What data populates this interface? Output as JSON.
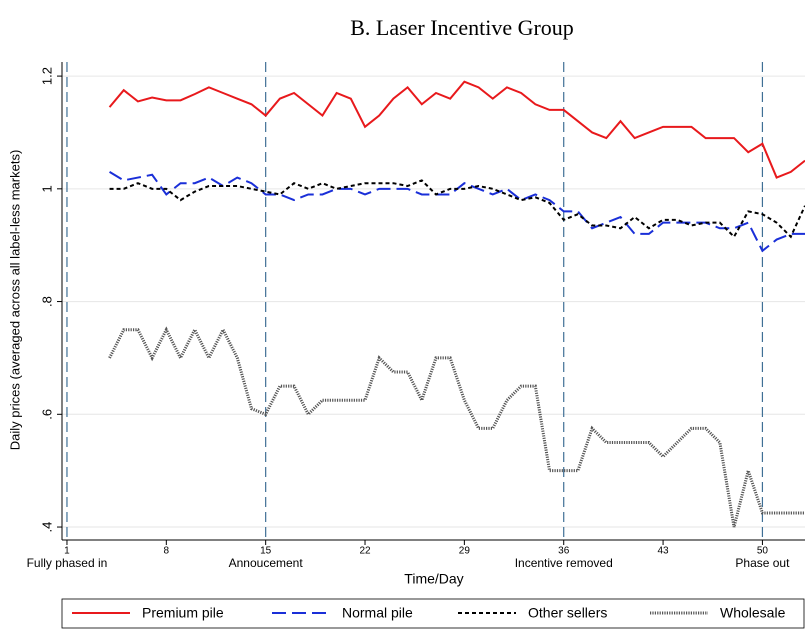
{
  "chart_data": {
    "type": "line",
    "title": "B. Laser Incentive Group",
    "x_label": "Time/Day",
    "y_label": "Daily prices (averaged across all label-less markets)",
    "x": [
      4,
      5,
      6,
      7,
      8,
      9,
      10,
      11,
      12,
      13,
      14,
      15,
      16,
      17,
      18,
      19,
      20,
      21,
      22,
      23,
      24,
      25,
      26,
      27,
      28,
      29,
      30,
      31,
      32,
      33,
      34,
      35,
      36,
      37,
      38,
      39,
      40,
      41,
      42,
      43,
      44,
      45,
      46,
      47,
      48,
      49,
      50,
      51,
      52,
      53
    ],
    "series": [
      {
        "name": "Premium pile",
        "color": "#e8191c",
        "style": "solid",
        "values": [
          1.145,
          1.175,
          1.155,
          1.162,
          1.157,
          1.157,
          1.168,
          1.18,
          1.17,
          1.16,
          1.15,
          1.13,
          1.16,
          1.17,
          1.15,
          1.13,
          1.17,
          1.16,
          1.11,
          1.13,
          1.16,
          1.18,
          1.15,
          1.17,
          1.16,
          1.19,
          1.18,
          1.16,
          1.18,
          1.17,
          1.15,
          1.14,
          1.14,
          1.12,
          1.1,
          1.09,
          1.12,
          1.09,
          1.1,
          1.11,
          1.11,
          1.11,
          1.09,
          1.09,
          1.09,
          1.065,
          1.08,
          1.02,
          1.03,
          1.05
        ]
      },
      {
        "name": "Normal pile",
        "color": "#1a2fd8",
        "style": "longdash",
        "values": [
          1.03,
          1.015,
          1.02,
          1.025,
          0.99,
          1.01,
          1.01,
          1.02,
          1.005,
          1.02,
          1.01,
          0.99,
          0.99,
          0.98,
          0.99,
          0.99,
          1.0,
          1.0,
          0.99,
          1.0,
          1.0,
          1.0,
          0.99,
          0.99,
          0.99,
          1.01,
          1.0,
          0.99,
          1.0,
          0.98,
          0.99,
          0.98,
          0.96,
          0.96,
          0.93,
          0.94,
          0.95,
          0.92,
          0.92,
          0.94,
          0.94,
          0.94,
          0.94,
          0.93,
          0.93,
          0.94,
          0.89,
          0.91,
          0.92,
          0.92
        ]
      },
      {
        "name": "Other sellers",
        "color": "#000000",
        "style": "shortdash",
        "values": [
          1.0,
          1.0,
          1.01,
          1.0,
          1.0,
          0.98,
          0.995,
          1.005,
          1.005,
          1.005,
          1.0,
          0.995,
          0.99,
          1.01,
          1.0,
          1.01,
          1.0,
          1.005,
          1.01,
          1.01,
          1.01,
          1.005,
          1.015,
          0.99,
          1.0,
          1.0,
          1.005,
          1.0,
          0.99,
          0.98,
          0.985,
          0.975,
          0.945,
          0.955,
          0.935,
          0.935,
          0.93,
          0.95,
          0.93,
          0.945,
          0.945,
          0.935,
          0.94,
          0.94,
          0.915,
          0.96,
          0.955,
          0.94,
          0.915,
          0.97
        ]
      },
      {
        "name": "Wholesale",
        "color": "#555555",
        "style": "dotted",
        "values": [
          0.7,
          0.75,
          0.75,
          0.7,
          0.75,
          0.7,
          0.75,
          0.7,
          0.75,
          0.7,
          0.61,
          0.6,
          0.65,
          0.65,
          0.6,
          0.625,
          0.625,
          0.625,
          0.625,
          0.7,
          0.675,
          0.675,
          0.625,
          0.7,
          0.7,
          0.625,
          0.575,
          0.575,
          0.625,
          0.65,
          0.65,
          0.5,
          0.5,
          0.5,
          0.575,
          0.55,
          0.55,
          0.55,
          0.55,
          0.525,
          0.55,
          0.575,
          0.575,
          0.55,
          0.4,
          0.5,
          0.425,
          0.425,
          0.425,
          0.425
        ]
      }
    ],
    "xlim": [
      0.65,
      53
    ],
    "ylim": [
      0.377,
      1.225
    ],
    "xticks": [
      1,
      8,
      15,
      22,
      29,
      36,
      43,
      50
    ],
    "yticks": [
      {
        "value": 0.4,
        "label": ".4"
      },
      {
        "value": 0.6,
        "label": ".6"
      },
      {
        "value": 0.8,
        "label": ".8"
      },
      1,
      1.2
    ],
    "grid": true,
    "annotations": [
      {
        "x": 1,
        "label": "Fully phased in"
      },
      {
        "x": 15,
        "label": "Annoucement"
      },
      {
        "x": 36,
        "label": "Incentive removed"
      },
      {
        "x": 50,
        "label": "Phase out"
      }
    ],
    "legend": "bottom"
  }
}
